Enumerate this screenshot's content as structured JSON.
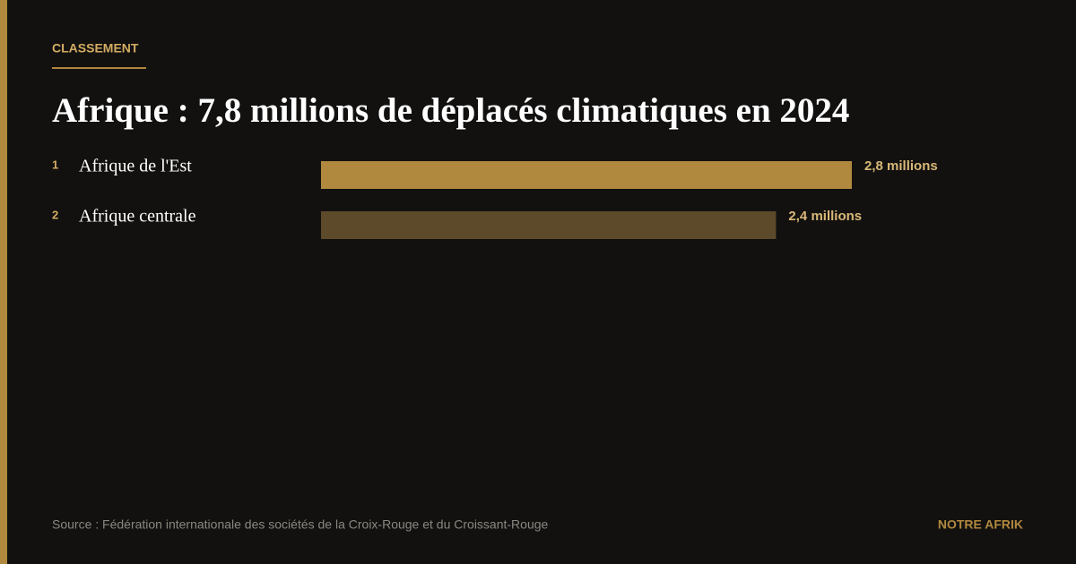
{
  "chart_data": {
    "type": "bar",
    "orientation": "horizontal",
    "kicker": "CLASSEMENT",
    "title": "Afrique : 7,8 millions de déplacés climatiques en 2024",
    "ranks": [
      1,
      2
    ],
    "categories": [
      "Afrique de l'Est",
      "Afrique centrale"
    ],
    "values": [
      2.8,
      2.4
    ],
    "value_labels": [
      "2,8 millions",
      "2,4 millions"
    ],
    "colors": [
      "#b0883e",
      "#5c4a2b"
    ],
    "source": "Source : Fédération internationale des sociétés de la Croix-Rouge et du Croissant-Rouge",
    "brand": "NOTRE AFRIK"
  }
}
